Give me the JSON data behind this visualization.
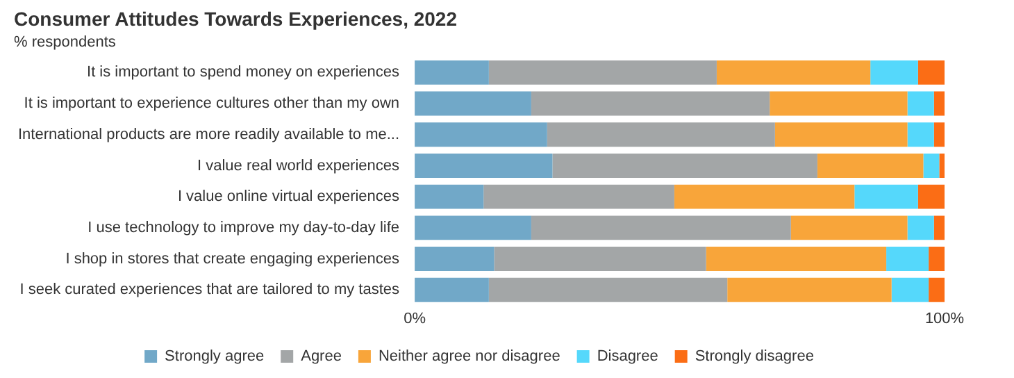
{
  "chart_data": {
    "type": "bar",
    "orientation": "horizontal",
    "stacked": true,
    "title": "Consumer Attitudes Towards Experiences, 2022",
    "subtitle": "% respondents",
    "categories": [
      "It is important to spend money on experiences",
      "It is important to experience cultures other than my own",
      "International products are more readily available to me...",
      "I value real world experiences",
      "I value online virtual experiences",
      "I use technology to improve my day-to-day life",
      "I shop in stores that create engaging experiences",
      "I seek curated experiences that are tailored to my tastes"
    ],
    "series": [
      {
        "name": "Strongly agree",
        "color": "#71a8c8",
        "values": [
          14,
          22,
          25,
          26,
          13,
          22,
          15,
          14
        ]
      },
      {
        "name": "Agree",
        "color": "#a3a6a7",
        "values": [
          43,
          45,
          43,
          50,
          36,
          49,
          40,
          45
        ]
      },
      {
        "name": "Neither agree nor disagree",
        "color": "#f8a53a",
        "values": [
          29,
          26,
          25,
          20,
          34,
          22,
          34,
          31
        ]
      },
      {
        "name": "Disagree",
        "color": "#55d8fb",
        "values": [
          9,
          5,
          5,
          3,
          12,
          5,
          8,
          7
        ]
      },
      {
        "name": "Strongly disagree",
        "color": "#fb6d15",
        "values": [
          5,
          2,
          2,
          1,
          5,
          2,
          3,
          3
        ]
      }
    ],
    "xlim": [
      0,
      100
    ],
    "xticks": [
      {
        "value": 0,
        "label": "0%"
      },
      {
        "value": 100,
        "label": "100%"
      }
    ],
    "grid": false,
    "legend": "bottom"
  }
}
